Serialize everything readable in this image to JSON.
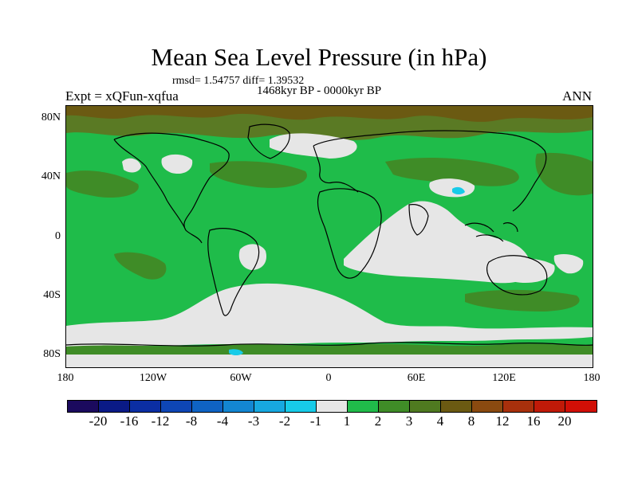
{
  "title": "Mean Sea Level Pressure (in hPa)",
  "stats": "rmsd= 1.54757  diff= 1.39532",
  "period": "1468kyr BP - 0000kyr BP",
  "experiment": "Expt = xQFun-xqfua",
  "season": "ANN",
  "axes": {
    "lat_labels": [
      "80N",
      "40N",
      "0",
      "40S",
      "80S"
    ],
    "lon_labels": [
      "180",
      "120W",
      "60W",
      "0",
      "60E",
      "120E",
      "180"
    ]
  },
  "colorbar": {
    "labels": [
      "-20",
      "-16",
      "-12",
      "-8",
      "-4",
      "-3",
      "-2",
      "-1",
      "1",
      "2",
      "3",
      "4",
      "8",
      "12",
      "16",
      "20"
    ],
    "colors": [
      "#1b0a5e",
      "#0a1a86",
      "#0b2ea3",
      "#0e46b5",
      "#0f63c4",
      "#1386d2",
      "#17a8e0",
      "#17cbe8",
      "#e6e6e6",
      "#20bb4a",
      "#3f8c27",
      "#4f7a20",
      "#6b5a12",
      "#8a4a10",
      "#a8300c",
      "#c01a08",
      "#d10f06"
    ]
  },
  "colors": {
    "green_1_2": "#1fbc4a",
    "white_neutral": "#e6e6e6",
    "olive_2_3": "#3f8c27",
    "olive_3_4": "#5a7a24",
    "brown_4_8": "#6b5a12",
    "cyan_neg": "#17cbe8"
  }
}
